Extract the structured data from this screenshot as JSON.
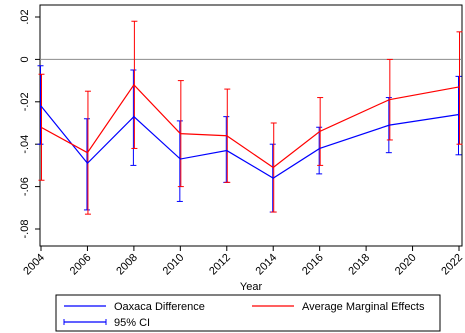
{
  "chart_data": {
    "type": "line",
    "xlabel": "Year",
    "ylabel": "",
    "title": "",
    "x": [
      2004,
      2006,
      2008,
      2010,
      2012,
      2014,
      2016,
      2019,
      2022
    ],
    "xticks": [
      2004,
      2006,
      2008,
      2010,
      2012,
      2014,
      2016,
      2018,
      2020,
      2022
    ],
    "yticks": [
      0.02,
      0,
      -0.02,
      -0.04,
      -0.06,
      -0.08
    ],
    "ytick_labels": [
      ".02",
      "0",
      "-.02",
      "-.04",
      "-.06",
      "-.08"
    ],
    "xlim": [
      2004,
      2022
    ],
    "ylim": [
      -0.084,
      0.025
    ],
    "reference_line_y": 0,
    "grid": false,
    "legend_position": "bottom",
    "series": [
      {
        "name": "Oaxaca Difference",
        "color": "#0000ff",
        "values": [
          -0.022,
          -0.049,
          -0.027,
          -0.047,
          -0.043,
          -0.056,
          -0.042,
          -0.031,
          -0.026
        ],
        "ci_low": [
          -0.04,
          -0.071,
          -0.05,
          -0.067,
          -0.058,
          -0.072,
          -0.054,
          -0.044,
          -0.045
        ],
        "ci_high": [
          -0.003,
          -0.028,
          -0.005,
          -0.029,
          -0.027,
          -0.04,
          -0.032,
          -0.018,
          -0.008
        ]
      },
      {
        "name": "Average Marginal Effects",
        "color": "#ff0000",
        "values": [
          -0.032,
          -0.044,
          -0.012,
          -0.035,
          -0.036,
          -0.051,
          -0.034,
          -0.019,
          -0.013
        ],
        "ci_low": [
          -0.057,
          -0.073,
          -0.042,
          -0.06,
          -0.058,
          -0.072,
          -0.05,
          -0.038,
          -0.04
        ],
        "ci_high": [
          -0.007,
          -0.015,
          0.018,
          -0.01,
          -0.014,
          -0.03,
          -0.018,
          0.0,
          0.013
        ]
      }
    ],
    "legend": {
      "items": [
        {
          "label": "Oaxaca Difference",
          "color": "#0000ff",
          "kind": "line"
        },
        {
          "label": "Average Marginal Effects",
          "color": "#ff0000",
          "kind": "line"
        },
        {
          "label": "95% CI",
          "color": "#0000ff",
          "kind": "errorbar"
        }
      ]
    }
  }
}
